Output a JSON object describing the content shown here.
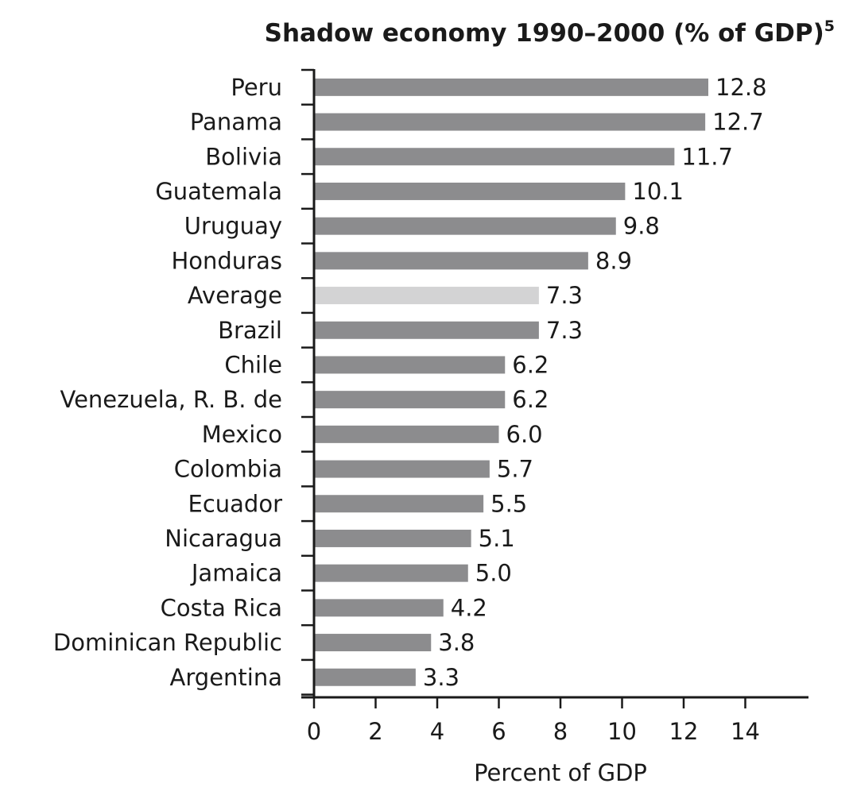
{
  "chart_data": {
    "type": "bar",
    "orientation": "horizontal",
    "title": "Shadow economy 1990–2000 (% of GDP)",
    "title_superscript": "5",
    "xlabel": "Percent of GDP",
    "ylabel": "",
    "xlim": [
      0,
      16
    ],
    "xticks": [
      "0",
      "2",
      "4",
      "6",
      "8",
      "10",
      "12",
      "14"
    ],
    "grid": false,
    "legend": "none",
    "categories": [
      "Peru",
      "Panama",
      "Bolivia",
      "Guatemala",
      "Uruguay",
      "Honduras",
      "Average",
      "Brazil",
      "Chile",
      "Venezuela, R. B. de",
      "Mexico",
      "Colombia",
      "Ecuador",
      "Nicaragua",
      "Jamaica",
      "Costa Rica",
      "Dominican Republic",
      "Argentina"
    ],
    "values": [
      12.8,
      12.7,
      11.7,
      10.1,
      9.8,
      8.9,
      7.3,
      7.3,
      6.2,
      6.2,
      6.0,
      5.7,
      5.5,
      5.1,
      5.0,
      4.2,
      3.8,
      3.3
    ],
    "value_labels": [
      "12.8",
      "12.7",
      "11.7",
      "10.1",
      "9.8",
      "8.9",
      "7.3",
      "7.3",
      "6.2",
      "6.2",
      "6.0",
      "5.7",
      "5.5",
      "5.1",
      "5.0",
      "4.2",
      "3.8",
      "3.3"
    ],
    "highlight_category": "Average",
    "colors": {
      "bar": "#8c8c8e",
      "highlight_bar": "#d3d3d4",
      "axis": "#1a1a1a",
      "text": "#1a1a1a"
    }
  }
}
